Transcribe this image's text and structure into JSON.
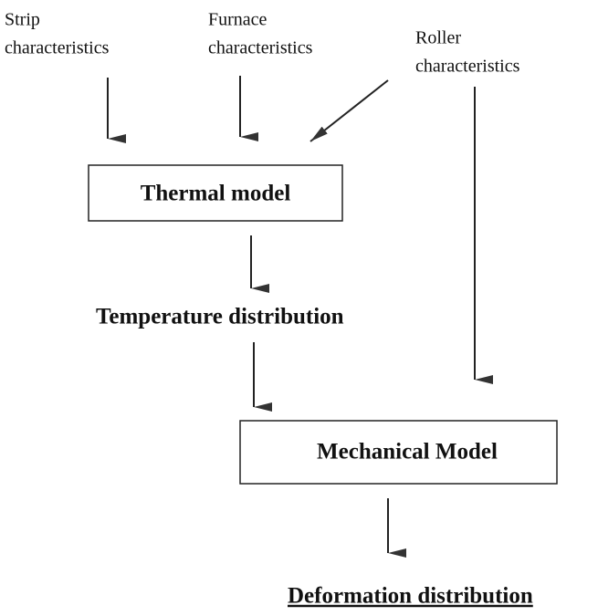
{
  "inputs": [
    {
      "lines": [
        "Strip",
        "characteristics"
      ]
    },
    {
      "lines": [
        "Furnace",
        "characteristics"
      ]
    },
    {
      "lines": [
        "Roller",
        "characteristics"
      ]
    }
  ],
  "nodes": [
    {
      "label": "Thermal model"
    },
    {
      "label": "Temperature distribution"
    },
    {
      "label": "Mechanical Model"
    },
    {
      "label": "Deformation distribution"
    }
  ]
}
